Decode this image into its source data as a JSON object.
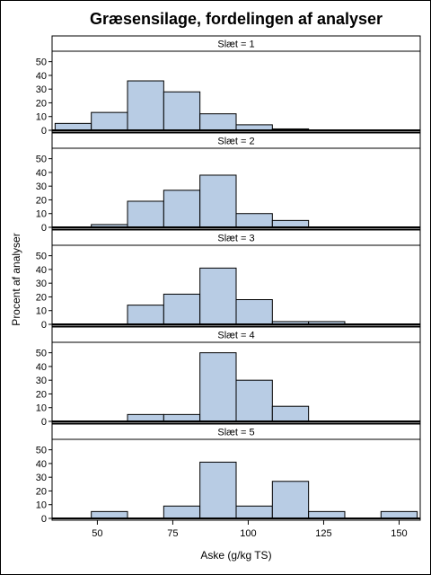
{
  "chart_data": {
    "type": "bar",
    "title": "Græsensilage, fordelingen af analyser",
    "xlabel": "Aske (g/kg TS)",
    "ylabel": "Procent af analyser",
    "xlim": [
      35,
      157
    ],
    "ylim": [
      0,
      55
    ],
    "x_ticks": [
      50,
      75,
      100,
      125,
      150
    ],
    "y_ticks": [
      0,
      10,
      20,
      30,
      40,
      50
    ],
    "bin_edges": [
      36,
      48,
      60,
      72,
      84,
      96,
      108,
      120,
      132,
      144,
      156
    ],
    "bar_color": "#b8cce4",
    "panels": [
      {
        "label": "Slæt = 1",
        "values": [
          5,
          13,
          36,
          28,
          12,
          4,
          1,
          0,
          0,
          0
        ]
      },
      {
        "label": "Slæt = 2",
        "values": [
          0,
          2,
          19,
          27,
          38,
          10,
          5,
          0,
          0,
          0
        ]
      },
      {
        "label": "Slæt = 3",
        "values": [
          0,
          0,
          14,
          22,
          41,
          18,
          2,
          2,
          0,
          0
        ]
      },
      {
        "label": "Slæt = 4",
        "values": [
          0,
          0,
          5,
          5,
          50,
          30,
          11,
          0,
          0,
          0
        ]
      },
      {
        "label": "Slæt = 5",
        "values": [
          0,
          5,
          0,
          9,
          41,
          9,
          27,
          5,
          0,
          5
        ]
      }
    ]
  }
}
